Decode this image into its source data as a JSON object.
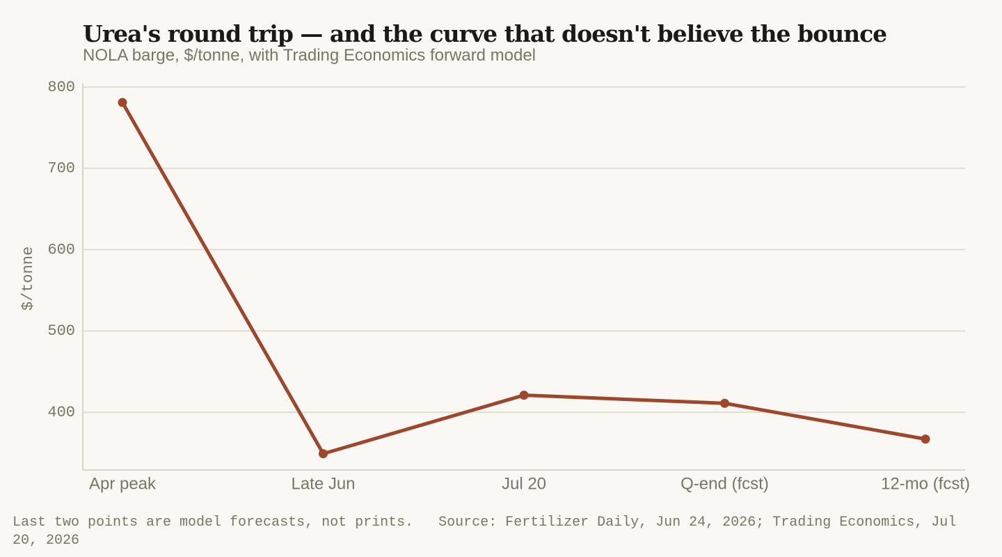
{
  "chart_data": {
    "type": "line",
    "title": "Urea's round trip — and the curve that doesn't believe the bounce",
    "subtitle": "NOLA barge, $/tonne, with Trading Economics forward model",
    "y_label": "$/tonne",
    "categories": [
      "Apr peak",
      "Late Jun",
      "Jul 20",
      "Q-end (fcst)",
      "12-mo (fcst)"
    ],
    "series": [
      {
        "name": "NOLA barge",
        "color": "#a0472a",
        "values": [
          781,
          349,
          421,
          411,
          367
        ]
      }
    ],
    "ylim": [
      329,
      800
    ],
    "yticks": [
      400,
      500,
      600,
      700,
      800
    ],
    "grid": true,
    "note": "Last two points are model forecasts, not prints.",
    "source": "Source: Fertilizer Daily, Jun 24, 2026; Trading Economics, Jul 20, 2026"
  }
}
